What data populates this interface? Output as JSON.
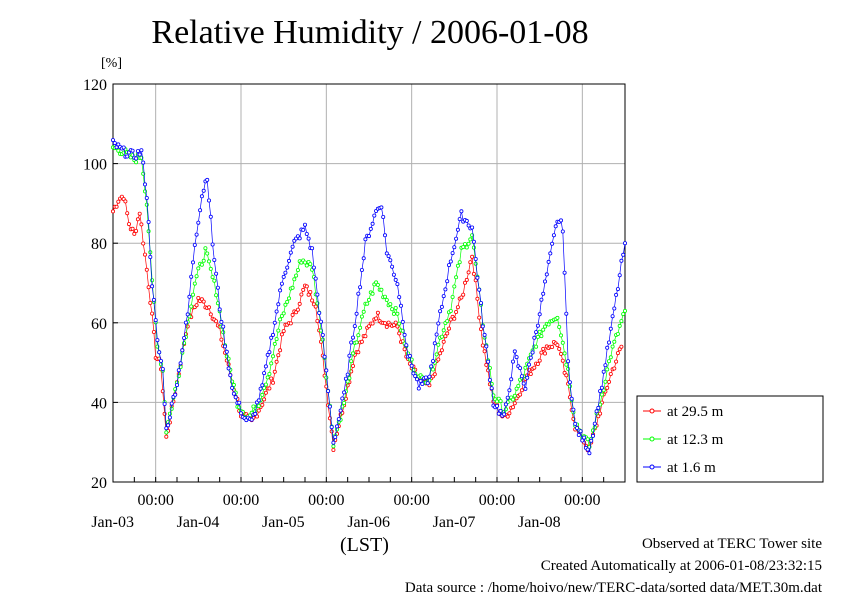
{
  "title": "Relative Humidity / 2006-01-08",
  "y_unit": "[%]",
  "x_unit": "(LST)",
  "footer": {
    "line1": "Observed at TERC Tower site",
    "line2": "Created Automatically at 2006-01-08/23:32:15",
    "line3": "Data source : /home/hoivo/new/TERC-data/sorted  data/MET.30m.dat"
  },
  "chart_data": {
    "type": "line",
    "title": "Relative Humidity / 2006-01-08",
    "ylabel": "[%]",
    "xlabel": "(LST)",
    "ylim": [
      20,
      120
    ],
    "yticks": [
      20,
      40,
      60,
      80,
      100,
      120
    ],
    "xlim_days": [
      "2006-01-02 12:00",
      "2006-01-08 12:00"
    ],
    "x_tick_time_labels": [
      "00:00",
      "00:00",
      "00:00",
      "00:00",
      "00:00",
      "00:00"
    ],
    "x_tick_date_labels": [
      "Jan-03",
      "Jan-04",
      "Jan-05",
      "Jan-06",
      "Jan-07",
      "Jan-08"
    ],
    "grid": true,
    "legend_position": "right",
    "series": [
      {
        "name": "at 29.5 m",
        "color": "#ff0000",
        "anchors": [
          [
            "2006-01-02 12:00",
            88
          ],
          [
            "2006-01-02 13:30",
            91
          ],
          [
            "2006-01-02 15:00",
            92
          ],
          [
            "2006-01-02 16:30",
            85
          ],
          [
            "2006-01-02 18:00",
            82
          ],
          [
            "2006-01-02 19:30",
            88
          ],
          [
            "2006-01-02 21:00",
            77
          ],
          [
            "2006-01-02 22:30",
            66
          ],
          [
            "2006-01-03 00:00",
            52
          ],
          [
            "2006-01-03 01:30",
            49
          ],
          [
            "2006-01-03 03:00",
            31
          ],
          [
            "2006-01-03 06:00",
            45
          ],
          [
            "2006-01-03 09:00",
            60
          ],
          [
            "2006-01-03 12:00",
            66
          ],
          [
            "2006-01-03 15:00",
            64
          ],
          [
            "2006-01-03 18:00",
            58
          ],
          [
            "2006-01-03 21:00",
            47
          ],
          [
            "2006-01-04 00:00",
            37
          ],
          [
            "2006-01-04 03:00",
            35
          ],
          [
            "2006-01-04 06:00",
            40
          ],
          [
            "2006-01-04 09:00",
            46
          ],
          [
            "2006-01-04 12:00",
            58
          ],
          [
            "2006-01-04 15:00",
            62
          ],
          [
            "2006-01-04 18:00",
            69
          ],
          [
            "2006-01-04 21:00",
            65
          ],
          [
            "2006-01-05 00:00",
            44
          ],
          [
            "2006-01-05 02:00",
            29
          ],
          [
            "2006-01-05 05:00",
            40
          ],
          [
            "2006-01-05 08:00",
            52
          ],
          [
            "2006-01-05 11:00",
            57
          ],
          [
            "2006-01-05 14:00",
            62
          ],
          [
            "2006-01-05 17:00",
            60
          ],
          [
            "2006-01-05 20:00",
            59
          ],
          [
            "2006-01-05 23:00",
            50
          ],
          [
            "2006-01-06 02:00",
            46
          ],
          [
            "2006-01-06 05:00",
            44
          ],
          [
            "2006-01-06 08:00",
            52
          ],
          [
            "2006-01-06 11:00",
            60
          ],
          [
            "2006-01-06 14:00",
            66
          ],
          [
            "2006-01-06 17:00",
            77
          ],
          [
            "2006-01-06 20:00",
            55
          ],
          [
            "2006-01-06 23:00",
            40
          ],
          [
            "2006-01-07 02:00",
            36
          ],
          [
            "2006-01-07 05:00",
            40
          ],
          [
            "2006-01-07 08:00",
            46
          ],
          [
            "2006-01-07 11:00",
            50
          ],
          [
            "2006-01-07 14:00",
            54
          ],
          [
            "2006-01-07 17:00",
            55
          ],
          [
            "2006-01-07 20:00",
            44
          ],
          [
            "2006-01-07 22:00",
            34
          ],
          [
            "2006-01-08 02:00",
            28
          ],
          [
            "2006-01-08 05:00",
            38
          ],
          [
            "2006-01-08 08:00",
            47
          ],
          [
            "2006-01-08 11:00",
            54
          ]
        ]
      },
      {
        "name": "at 12.3 m",
        "color": "#00ff00",
        "anchors": [
          [
            "2006-01-02 12:00",
            104
          ],
          [
            "2006-01-02 15:00",
            103
          ],
          [
            "2006-01-02 18:00",
            101
          ],
          [
            "2006-01-02 20:00",
            102
          ],
          [
            "2006-01-02 21:30",
            90
          ],
          [
            "2006-01-02 23:00",
            70
          ],
          [
            "2006-01-03 00:30",
            55
          ],
          [
            "2006-01-03 02:00",
            48
          ],
          [
            "2006-01-03 03:00",
            33
          ],
          [
            "2006-01-03 06:00",
            45
          ],
          [
            "2006-01-03 09:00",
            60
          ],
          [
            "2006-01-03 11:00",
            70
          ],
          [
            "2006-01-03 14:00",
            78
          ],
          [
            "2006-01-03 17:00",
            68
          ],
          [
            "2006-01-03 20:00",
            52
          ],
          [
            "2006-01-03 23:00",
            40
          ],
          [
            "2006-01-04 02:00",
            36
          ],
          [
            "2006-01-04 05:00",
            40
          ],
          [
            "2006-01-04 08:00",
            48
          ],
          [
            "2006-01-04 11:00",
            60
          ],
          [
            "2006-01-04 14:00",
            68
          ],
          [
            "2006-01-04 17:00",
            76
          ],
          [
            "2006-01-04 20:00",
            74
          ],
          [
            "2006-01-04 23:00",
            56
          ],
          [
            "2006-01-05 02:00",
            30
          ],
          [
            "2006-01-05 05:00",
            40
          ],
          [
            "2006-01-05 08:00",
            54
          ],
          [
            "2006-01-05 11:00",
            64
          ],
          [
            "2006-01-05 14:00",
            70
          ],
          [
            "2006-01-05 17:00",
            66
          ],
          [
            "2006-01-05 20:00",
            62
          ],
          [
            "2006-01-05 23:00",
            52
          ],
          [
            "2006-01-06 02:00",
            46
          ],
          [
            "2006-01-06 05:00",
            46
          ],
          [
            "2006-01-06 08:00",
            56
          ],
          [
            "2006-01-06 11:00",
            64
          ],
          [
            "2006-01-06 14:00",
            78
          ],
          [
            "2006-01-06 17:00",
            82
          ],
          [
            "2006-01-06 20:00",
            60
          ],
          [
            "2006-01-06 23:00",
            42
          ],
          [
            "2006-01-07 02:00",
            38
          ],
          [
            "2006-01-07 05:00",
            42
          ],
          [
            "2006-01-07 08:00",
            48
          ],
          [
            "2006-01-07 11:00",
            55
          ],
          [
            "2006-01-07 14:00",
            60
          ],
          [
            "2006-01-07 17:00",
            62
          ],
          [
            "2006-01-07 20:00",
            48
          ],
          [
            "2006-01-07 22:00",
            35
          ],
          [
            "2006-01-08 02:00",
            29
          ],
          [
            "2006-01-08 05:00",
            40
          ],
          [
            "2006-01-08 08:00",
            52
          ],
          [
            "2006-01-08 12:00",
            63
          ]
        ]
      },
      {
        "name": "at 1.6 m",
        "color": "#0000ff",
        "anchors": [
          [
            "2006-01-02 12:00",
            105
          ],
          [
            "2006-01-02 15:00",
            103
          ],
          [
            "2006-01-02 18:00",
            102
          ],
          [
            "2006-01-02 20:00",
            103
          ],
          [
            "2006-01-02 21:30",
            92
          ],
          [
            "2006-01-02 23:00",
            70
          ],
          [
            "2006-01-03 00:30",
            55
          ],
          [
            "2006-01-03 02:00",
            48
          ],
          [
            "2006-01-03 03:00",
            33
          ],
          [
            "2006-01-03 06:00",
            45
          ],
          [
            "2006-01-03 09:00",
            62
          ],
          [
            "2006-01-03 11:00",
            80
          ],
          [
            "2006-01-03 13:00",
            92
          ],
          [
            "2006-01-03 14:30",
            97
          ],
          [
            "2006-01-03 16:00",
            80
          ],
          [
            "2006-01-03 18:00",
            64
          ],
          [
            "2006-01-03 20:00",
            52
          ],
          [
            "2006-01-03 22:00",
            42
          ],
          [
            "2006-01-04 01:00",
            36
          ],
          [
            "2006-01-04 03:00",
            35
          ],
          [
            "2006-01-04 06:00",
            44
          ],
          [
            "2006-01-04 09:00",
            58
          ],
          [
            "2006-01-04 12:00",
            72
          ],
          [
            "2006-01-04 15:00",
            80
          ],
          [
            "2006-01-04 18:00",
            84
          ],
          [
            "2006-01-04 20:00",
            78
          ],
          [
            "2006-01-04 23:00",
            56
          ],
          [
            "2006-01-05 02:00",
            30
          ],
          [
            "2006-01-05 05:00",
            42
          ],
          [
            "2006-01-05 08:00",
            60
          ],
          [
            "2006-01-05 11:00",
            80
          ],
          [
            "2006-01-05 14:00",
            88
          ],
          [
            "2006-01-05 15:30",
            90
          ],
          [
            "2006-01-05 17:00",
            78
          ],
          [
            "2006-01-05 20:00",
            70
          ],
          [
            "2006-01-05 23:00",
            52
          ],
          [
            "2006-01-06 02:00",
            44
          ],
          [
            "2006-01-06 05:00",
            46
          ],
          [
            "2006-01-06 08:00",
            62
          ],
          [
            "2006-01-06 11:00",
            76
          ],
          [
            "2006-01-06 14:00",
            87
          ],
          [
            "2006-01-06 17:00",
            84
          ],
          [
            "2006-01-06 20:00",
            60
          ],
          [
            "2006-01-06 23:00",
            40
          ],
          [
            "2006-01-07 02:00",
            36
          ],
          [
            "2006-01-07 05:00",
            52
          ],
          [
            "2006-01-07 08:00",
            44
          ],
          [
            "2006-01-07 11:00",
            58
          ],
          [
            "2006-01-07 14:00",
            72
          ],
          [
            "2006-01-07 17:00",
            86
          ],
          [
            "2006-01-07 18:30",
            84
          ],
          [
            "2006-01-07 20:00",
            50
          ],
          [
            "2006-01-07 22:00",
            34
          ],
          [
            "2006-01-08 02:00",
            28
          ],
          [
            "2006-01-08 05:00",
            42
          ],
          [
            "2006-01-08 08:00",
            58
          ],
          [
            "2006-01-08 12:00",
            80
          ]
        ]
      }
    ]
  }
}
